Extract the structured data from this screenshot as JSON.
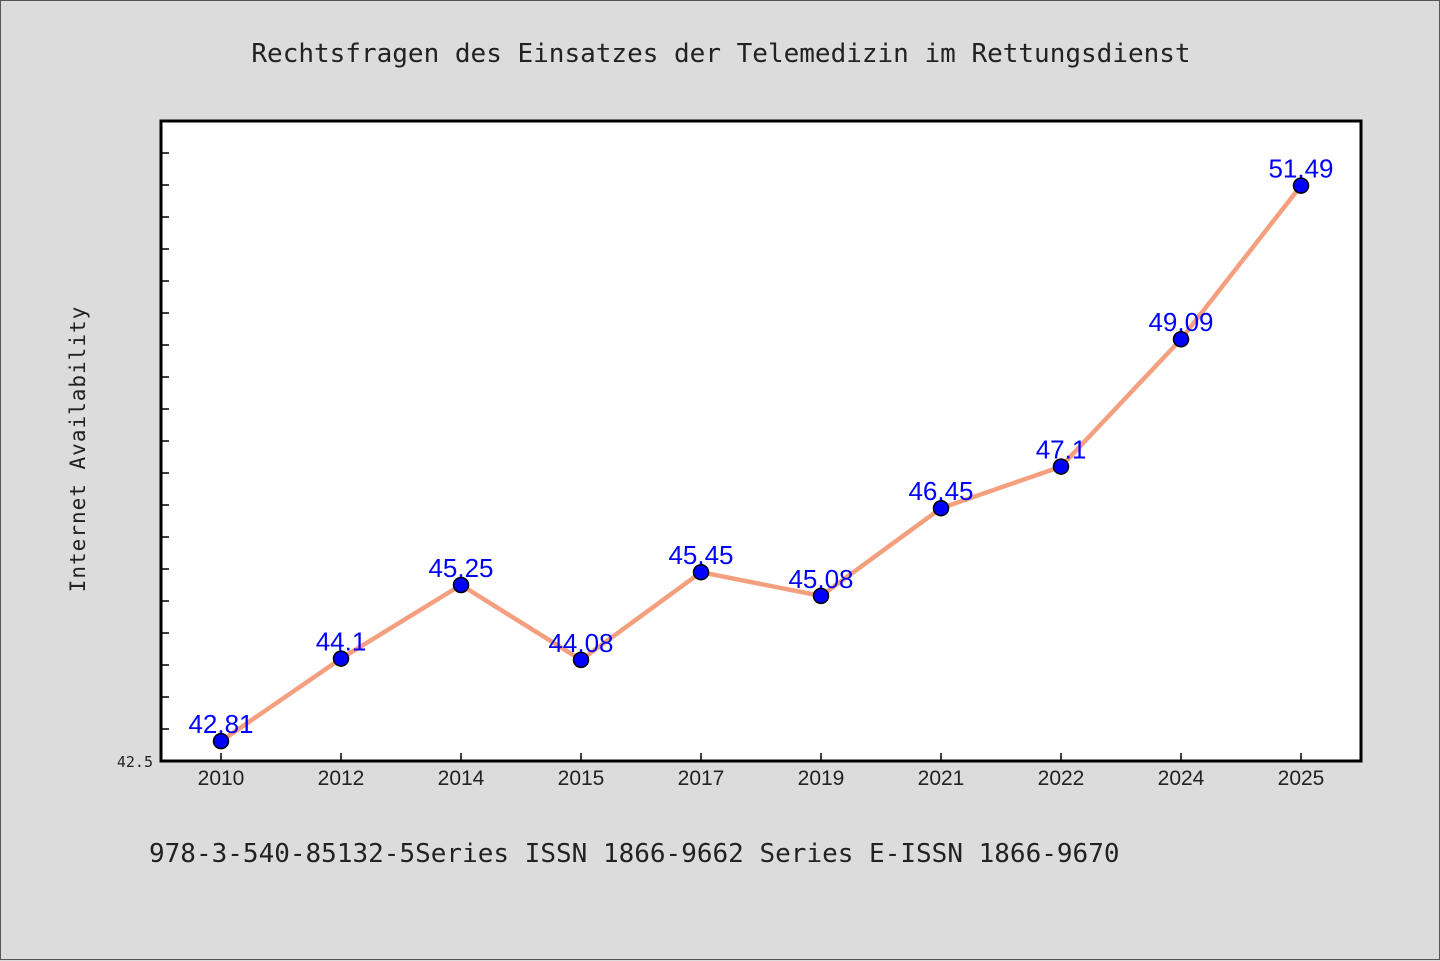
{
  "chart_data": {
    "type": "line",
    "title": "Rechtsfragen des Einsatzes der Telemedizin im Rettungsdienst",
    "ylabel": "Internet Availability",
    "xlabel": "",
    "categories": [
      "2010",
      "2012",
      "2014",
      "2015",
      "2017",
      "2019",
      "2021",
      "2022",
      "2024",
      "2025"
    ],
    "series": [
      {
        "values": [
          42.81,
          44.1,
          45.25,
          44.08,
          45.45,
          45.08,
          46.45,
          47.1,
          49.09,
          51.49
        ],
        "labels": [
          "42.81",
          "44.1",
          "45.25",
          "44.08",
          "45.45",
          "45.08",
          "46.45",
          "47.1",
          "49.09",
          "51.49"
        ]
      }
    ],
    "ylim": [
      42.5,
      52.5
    ],
    "ytick_labels": [
      "42.5"
    ],
    "grid": false,
    "colors": {
      "line": "#f4a07f",
      "marker": "#0000ff",
      "marker_edge": "#000000",
      "label": "#0000ff",
      "plot_bg": "#ffffff",
      "page_bg": "#dcdcdc"
    }
  },
  "footer": {
    "text": "978-3-540-85132-5Series ISSN 1866-9662 Series E-ISSN 1866-9670"
  }
}
